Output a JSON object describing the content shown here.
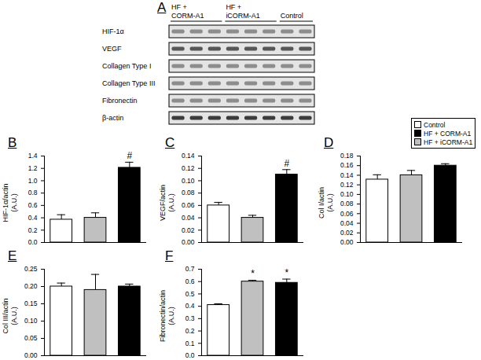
{
  "blot": {
    "title": "A",
    "groups": [
      {
        "label": "HF + CORM-A1",
        "lanes": 3
      },
      {
        "label": "HF + iCORM-A1",
        "lanes": 3
      },
      {
        "label": "Control",
        "lanes": 2
      }
    ],
    "rows": [
      "HIF-1α",
      "VEGF",
      "Collagen Type I",
      "Collagen Type III",
      "Fibronectin",
      "β-actin"
    ]
  },
  "legend_entries": [
    {
      "name": "Control",
      "color": "#ffffff"
    },
    {
      "name": "HF + CORM-A1",
      "color": "#000000"
    },
    {
      "name": "HF + iCORM-A1",
      "color": "#c0c0c0"
    }
  ],
  "chart_data": [
    {
      "type": "bar",
      "title": "B",
      "y_label": [
        "HIF-1α/actin",
        "(A.U.)"
      ],
      "categories": [
        null,
        null,
        null
      ],
      "values": [
        0.37,
        0.4,
        1.21
      ],
      "errors": [
        0.08,
        0.08,
        0.09
      ],
      "colors": [
        "#ffffff",
        "#c0c0c0",
        "#000000"
      ],
      "annotations": [
        {
          "index": 2,
          "text": "#"
        }
      ],
      "ylim": [
        0,
        1.4
      ],
      "yticks": [
        {
          "value": 0,
          "label": "0.0"
        },
        0.2,
        0.4,
        0.6,
        0.8,
        {
          "value": 1,
          "label": "1.0"
        },
        1.2,
        1.4
      ],
      "tick_labels": "y"
    },
    {
      "type": "bar",
      "title": "C",
      "y_label": [
        "VEGF/actin",
        "(A.U.)"
      ],
      "categories": [
        null,
        null,
        null
      ],
      "values": [
        0.06,
        0.04,
        0.11
      ],
      "errors": [
        0.005,
        0.004,
        0.008
      ],
      "colors": [
        "#ffffff",
        "#c0c0c0",
        "#000000"
      ],
      "annotations": [
        {
          "index": 2,
          "text": "#"
        }
      ],
      "ylim": [
        0,
        0.14
      ],
      "yticks": [
        {
          "value": 0,
          "label": "0.00"
        },
        0.02,
        0.04,
        0.06,
        0.08,
        {
          "value": 0.1,
          "label": "0.10"
        },
        0.12,
        0.14
      ],
      "tick_labels": "y"
    },
    {
      "type": "bar",
      "title": "D",
      "y_label": [
        "Col I/actin",
        "(A.U.)"
      ],
      "categories": [
        null,
        null,
        null
      ],
      "values": [
        0.131,
        0.14,
        0.16
      ],
      "errors": [
        0.01,
        0.01,
        0.004
      ],
      "colors": [
        "#ffffff",
        "#c0c0c0",
        "#000000"
      ],
      "annotations": [],
      "ylim": [
        0,
        0.18
      ],
      "yticks": [
        {
          "value": 0,
          "label": "0.00"
        },
        0.02,
        0.04,
        0.06,
        0.08,
        {
          "value": 0.1,
          "label": "0.10"
        },
        0.12,
        0.14,
        0.16,
        0.18
      ],
      "tick_labels": "y"
    },
    {
      "type": "bar",
      "title": "E",
      "y_label": [
        "Col III/actin",
        "(A.U.)"
      ],
      "categories": [
        null,
        null,
        null
      ],
      "values": [
        0.2,
        0.19,
        0.2
      ],
      "errors": [
        0.01,
        0.045,
        0.007
      ],
      "colors": [
        "#ffffff",
        "#c0c0c0",
        "#000000"
      ],
      "annotations": [],
      "ylim": [
        0,
        0.25
      ],
      "yticks": [
        {
          "value": 0,
          "label": "0.00"
        },
        0.05,
        {
          "value": 0.1,
          "label": "0.10"
        },
        0.15,
        {
          "value": 0.2,
          "label": "0.20"
        },
        0.25
      ],
      "tick_labels": "y"
    },
    {
      "type": "bar",
      "title": "F",
      "y_label": [
        "Fibronectin/actin",
        "(A.U.)"
      ],
      "categories": [
        null,
        null,
        null
      ],
      "values": [
        0.41,
        0.6,
        0.59
      ],
      "errors": [
        0.01,
        0.01,
        0.03
      ],
      "colors": [
        "#ffffff",
        "#c0c0c0",
        "#000000"
      ],
      "annotations": [
        {
          "index": 1,
          "text": "*"
        },
        {
          "index": 2,
          "text": "*"
        }
      ],
      "ylim": [
        0,
        0.7
      ],
      "yticks": [
        {
          "value": 0,
          "label": "0.0"
        },
        0.1,
        0.2,
        0.3,
        0.4,
        0.5,
        0.6,
        0.7
      ],
      "tick_labels": "y"
    }
  ]
}
